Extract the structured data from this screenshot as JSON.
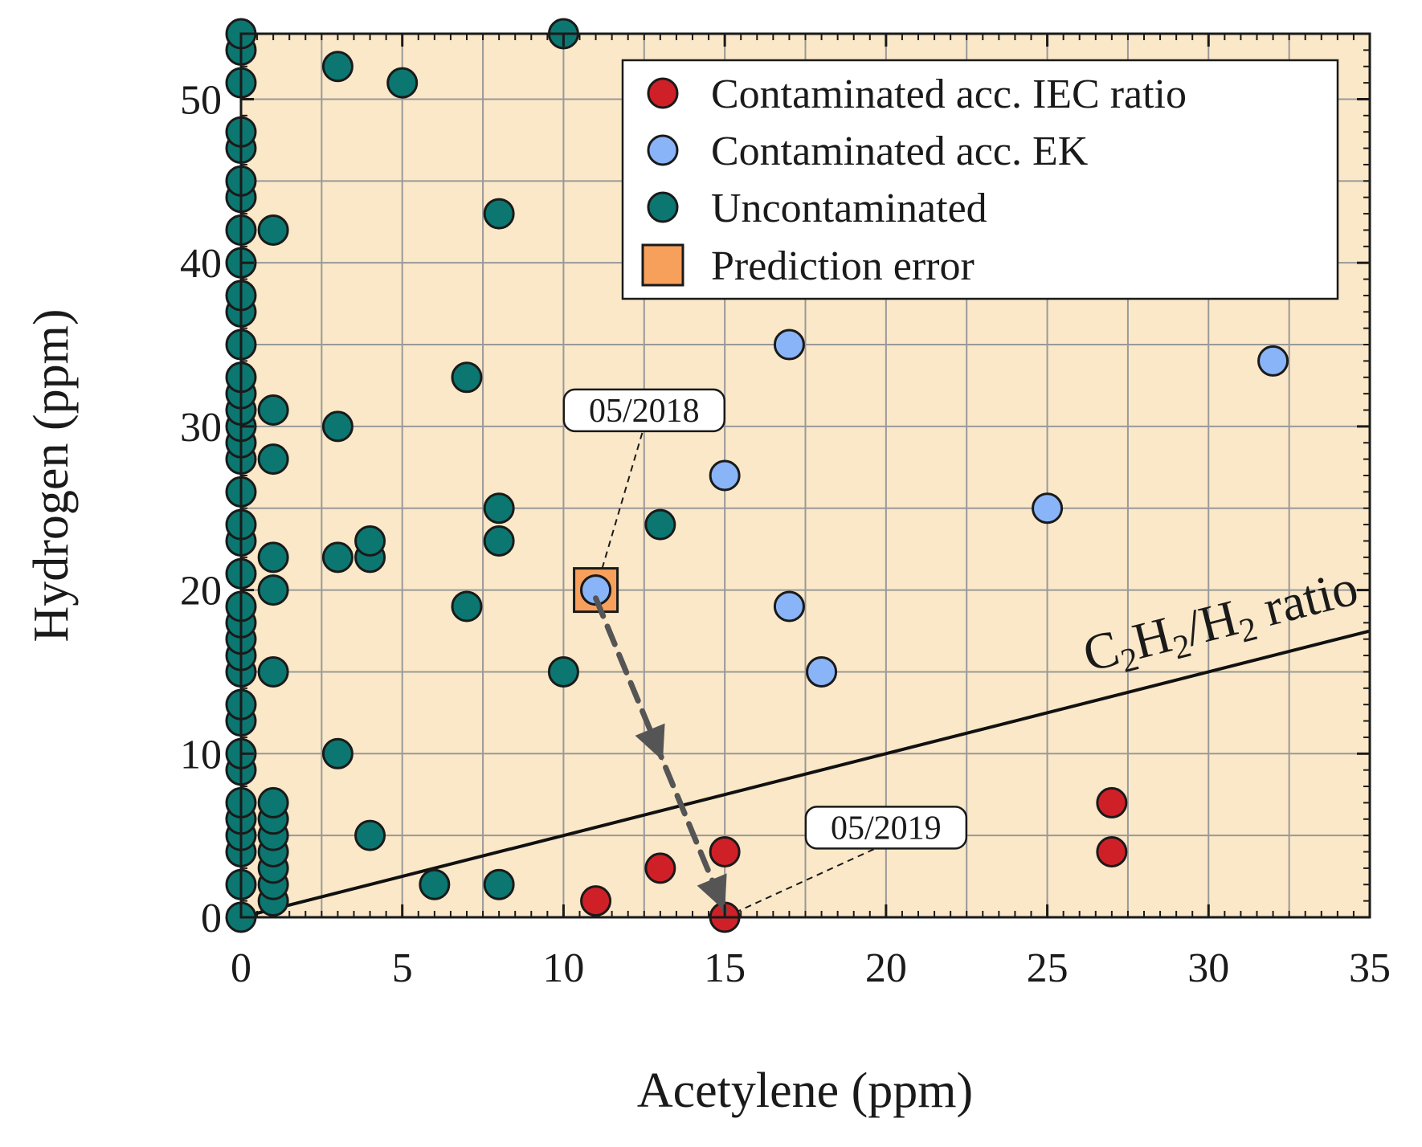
{
  "chart_data": {
    "type": "scatter",
    "xlabel": "Acetylene (ppm)",
    "ylabel": "Hydrogen (ppm)",
    "xlim": [
      0,
      35
    ],
    "ylim": [
      0,
      54
    ],
    "xticks": [
      0,
      5,
      10,
      15,
      20,
      25,
      30,
      35
    ],
    "xtick_labels": [
      "0",
      "5",
      "10",
      "15",
      "20",
      "25",
      "30",
      "35"
    ],
    "yticks": [
      0,
      10,
      20,
      30,
      40,
      50
    ],
    "ytick_labels": [
      "0",
      "10",
      "20",
      "30",
      "40",
      "50"
    ],
    "grid": true,
    "legend_position": "top-right",
    "colors": {
      "background": "#fbe8c8",
      "iec": "#d02027",
      "ek": "#8ab4f8",
      "uncontaminated": "#0b7770",
      "prediction_error": "#f7a05c",
      "grid": "#999999",
      "arrow": "#555555"
    },
    "series": [
      {
        "name": "Contaminated acc. IEC ratio",
        "marker": "circle",
        "points": [
          [
            11,
            1
          ],
          [
            13,
            3
          ],
          [
            15,
            4
          ],
          [
            15,
            0
          ],
          [
            27,
            7
          ],
          [
            27,
            4
          ]
        ]
      },
      {
        "name": "Contaminated acc. EK",
        "marker": "circle",
        "points": [
          [
            11,
            20
          ],
          [
            15,
            27
          ],
          [
            17,
            35
          ],
          [
            17,
            19
          ],
          [
            18,
            15
          ],
          [
            25,
            25
          ],
          [
            32,
            34
          ]
        ]
      },
      {
        "name": "Uncontaminated",
        "marker": "circle",
        "points": [
          [
            0,
            0
          ],
          [
            0,
            2
          ],
          [
            0,
            4
          ],
          [
            0,
            5
          ],
          [
            0,
            6
          ],
          [
            0,
            7
          ],
          [
            0,
            9
          ],
          [
            0,
            10
          ],
          [
            0,
            12
          ],
          [
            0,
            13
          ],
          [
            0,
            15
          ],
          [
            0,
            16
          ],
          [
            0,
            17
          ],
          [
            0,
            18
          ],
          [
            0,
            19
          ],
          [
            0,
            21
          ],
          [
            0,
            23
          ],
          [
            0,
            24
          ],
          [
            0,
            26
          ],
          [
            0,
            28
          ],
          [
            0,
            29
          ],
          [
            0,
            30
          ],
          [
            0,
            31
          ],
          [
            0,
            32
          ],
          [
            0,
            33
          ],
          [
            0,
            35
          ],
          [
            0,
            37
          ],
          [
            0,
            38
          ],
          [
            0,
            40
          ],
          [
            0,
            42
          ],
          [
            0,
            44
          ],
          [
            0,
            45
          ],
          [
            0,
            47
          ],
          [
            0,
            48
          ],
          [
            0,
            51
          ],
          [
            0,
            53
          ],
          [
            0,
            54
          ],
          [
            1,
            1
          ],
          [
            1,
            2
          ],
          [
            1,
            3
          ],
          [
            1,
            4
          ],
          [
            1,
            5
          ],
          [
            1,
            6
          ],
          [
            1,
            7
          ],
          [
            1,
            15
          ],
          [
            1,
            20
          ],
          [
            1,
            22
          ],
          [
            1,
            28
          ],
          [
            1,
            31
          ],
          [
            1,
            42
          ],
          [
            3,
            10
          ],
          [
            3,
            22
          ],
          [
            3,
            30
          ],
          [
            3,
            52
          ],
          [
            4,
            5
          ],
          [
            4,
            22
          ],
          [
            4,
            23
          ],
          [
            5,
            51
          ],
          [
            6,
            2
          ],
          [
            7,
            19
          ],
          [
            7,
            33
          ],
          [
            8,
            2
          ],
          [
            8,
            23
          ],
          [
            8,
            25
          ],
          [
            8,
            43
          ],
          [
            10,
            15
          ],
          [
            10,
            54
          ],
          [
            13,
            24
          ]
        ]
      },
      {
        "name": "Prediction error",
        "marker": "square",
        "points": [
          [
            11,
            20
          ]
        ]
      }
    ],
    "reference_line": {
      "label_main": "C",
      "label_sub1": "2",
      "label_mid1": "H",
      "label_sub2": "2",
      "label_mid2": "/H",
      "label_sub3": "2",
      "label_tail": " ratio",
      "from": [
        0,
        0
      ],
      "to": [
        35,
        17.5
      ]
    },
    "trend_arrow": {
      "from": [
        11,
        19.5
      ],
      "to": [
        15,
        0.4
      ]
    },
    "annotations": [
      {
        "label": "05/2018",
        "point": [
          11,
          20
        ],
        "anchor": [
          12.5,
          30
        ]
      },
      {
        "label": "05/2019",
        "point": [
          15,
          0
        ],
        "anchor": [
          20,
          4.5
        ]
      }
    ]
  }
}
